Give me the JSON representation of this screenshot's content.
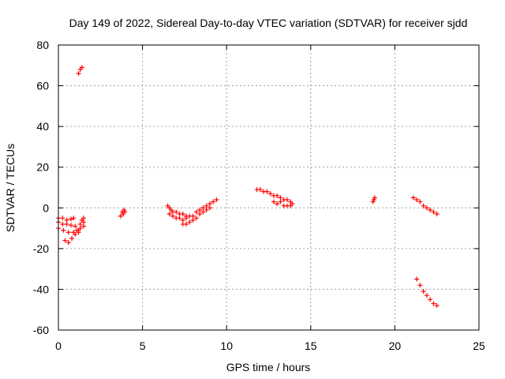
{
  "chart_data": {
    "type": "scatter",
    "title": "Day 149 of 2022, Sidereal Day-to-day VTEC variation (SDTVAR) for receiver sjdd",
    "xlabel": "GPS time / hours",
    "ylabel": "SDTVAR / TECUs",
    "xlim": [
      0,
      25
    ],
    "ylim": [
      -60,
      80
    ],
    "xticks": [
      0,
      5,
      10,
      15,
      20,
      25
    ],
    "yticks": [
      -60,
      -40,
      -20,
      0,
      20,
      40,
      60,
      80
    ],
    "grid": true,
    "marker": "plus",
    "color": "#ff0000",
    "segments": [
      {
        "name": "seg-0",
        "points": [
          [
            0.0,
            -5
          ],
          [
            0.25,
            -5
          ],
          [
            0.5,
            -6
          ],
          [
            0.75,
            -5.5
          ],
          [
            0.9,
            -5
          ],
          [
            0.0,
            -7
          ],
          [
            0.25,
            -8
          ],
          [
            0.5,
            -8
          ],
          [
            0.75,
            -8.5
          ],
          [
            1.0,
            -9
          ],
          [
            0.0,
            -10
          ],
          [
            0.3,
            -11
          ],
          [
            0.6,
            -12
          ],
          [
            0.9,
            -12
          ],
          [
            1.1,
            -11
          ],
          [
            1.3,
            -10
          ],
          [
            1.5,
            -9
          ],
          [
            0.4,
            -16
          ],
          [
            0.6,
            -17
          ],
          [
            0.8,
            -15
          ],
          [
            1.0,
            -13
          ],
          [
            1.2,
            -11
          ],
          [
            1.3,
            -8
          ],
          [
            1.4,
            -6
          ],
          [
            1.5,
            -5
          ],
          [
            1.5,
            -7
          ],
          [
            1.2,
            -12
          ]
        ]
      },
      {
        "name": "seg-1",
        "points": [
          [
            1.2,
            66
          ],
          [
            1.3,
            68
          ],
          [
            1.4,
            69
          ]
        ]
      },
      {
        "name": "seg-2",
        "points": [
          [
            3.7,
            -4
          ],
          [
            3.8,
            -2
          ],
          [
            3.85,
            -3
          ],
          [
            3.9,
            -1
          ],
          [
            3.95,
            -2
          ]
        ]
      },
      {
        "name": "seg-3",
        "points": [
          [
            6.5,
            1
          ],
          [
            6.6,
            0
          ],
          [
            6.7,
            -1
          ],
          [
            6.8,
            -2
          ],
          [
            7.0,
            -2
          ],
          [
            7.2,
            -3
          ],
          [
            7.4,
            -3
          ],
          [
            7.6,
            -4
          ],
          [
            7.8,
            -4
          ],
          [
            8.0,
            -4
          ],
          [
            6.6,
            -3
          ],
          [
            6.8,
            -4
          ],
          [
            7.0,
            -5
          ],
          [
            7.2,
            -5
          ],
          [
            7.4,
            -6
          ],
          [
            7.6,
            -5
          ],
          [
            7.4,
            -8
          ],
          [
            7.6,
            -8
          ],
          [
            7.8,
            -7
          ],
          [
            8.0,
            -6
          ],
          [
            8.2,
            -5
          ],
          [
            8.4,
            -3
          ],
          [
            8.2,
            -2
          ],
          [
            8.4,
            -1
          ],
          [
            8.6,
            0
          ],
          [
            8.8,
            1
          ],
          [
            9.0,
            2
          ],
          [
            9.2,
            3
          ],
          [
            9.4,
            4
          ],
          [
            8.6,
            -2
          ],
          [
            8.8,
            -1
          ],
          [
            9.0,
            0
          ]
        ]
      },
      {
        "name": "seg-4",
        "points": [
          [
            11.8,
            9
          ],
          [
            12.0,
            9
          ],
          [
            12.2,
            8
          ],
          [
            12.4,
            8
          ],
          [
            12.6,
            7
          ],
          [
            12.8,
            6
          ],
          [
            13.0,
            6
          ],
          [
            13.2,
            5
          ],
          [
            12.8,
            3
          ],
          [
            13.0,
            2
          ],
          [
            13.2,
            3
          ],
          [
            13.4,
            4
          ],
          [
            13.6,
            4
          ],
          [
            13.8,
            3
          ],
          [
            13.4,
            1
          ],
          [
            13.6,
            1
          ],
          [
            13.8,
            1
          ],
          [
            13.9,
            2
          ]
        ]
      },
      {
        "name": "seg-5",
        "points": [
          [
            18.7,
            3
          ],
          [
            18.75,
            4
          ],
          [
            18.8,
            5
          ]
        ]
      },
      {
        "name": "seg-6",
        "points": [
          [
            21.1,
            5
          ],
          [
            21.3,
            4
          ],
          [
            21.5,
            3
          ],
          [
            21.7,
            1
          ],
          [
            21.9,
            0
          ],
          [
            22.1,
            -1
          ],
          [
            22.3,
            -2
          ],
          [
            22.5,
            -3
          ]
        ]
      },
      {
        "name": "seg-7",
        "points": [
          [
            21.3,
            -35
          ],
          [
            21.5,
            -38
          ],
          [
            21.7,
            -41
          ],
          [
            21.9,
            -43
          ],
          [
            22.1,
            -45
          ],
          [
            22.3,
            -47
          ],
          [
            22.5,
            -48
          ]
        ]
      }
    ]
  }
}
